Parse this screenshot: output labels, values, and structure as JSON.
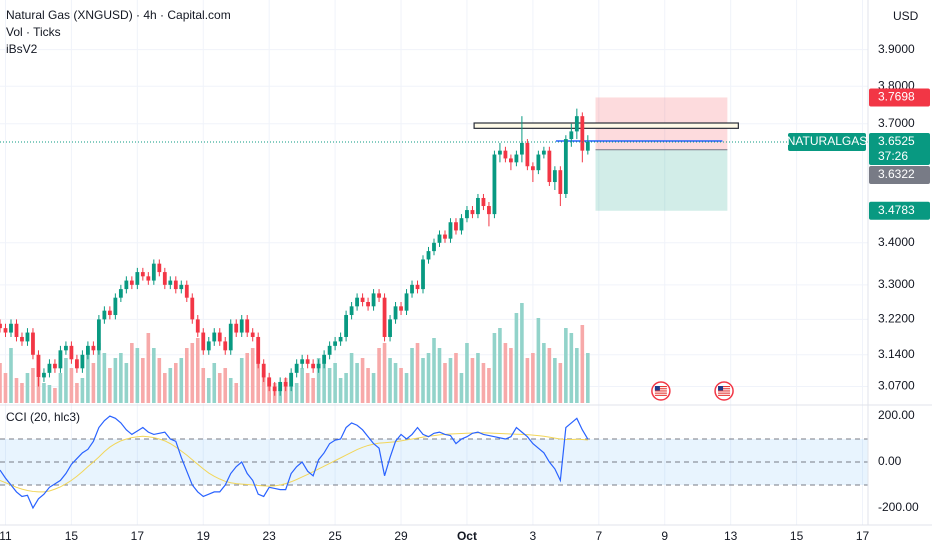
{
  "chart_data": [
    {
      "type": "candlestick",
      "title": "Natural Gas (XNGUSD) · 4h · Capital.com",
      "subtitles": [
        "Vol · Ticks",
        "iBsV2"
      ],
      "y_axis_label": "USD",
      "log_scale": true,
      "grid": true,
      "grid_color": "#f0f3fa",
      "ylim": [
        3.03,
        4.04
      ],
      "yticks": [
        {
          "value": 3.07,
          "label": "3.0700"
        },
        {
          "value": 3.14,
          "label": "3.1400"
        },
        {
          "value": 3.22,
          "label": "3.2200"
        },
        {
          "value": 3.3,
          "label": "3.3000"
        },
        {
          "value": 3.4,
          "label": "3.4000"
        },
        {
          "value": 3.7,
          "label": "3.7000"
        },
        {
          "value": 3.8,
          "label": "3.8000"
        },
        {
          "value": 3.9,
          "label": "3.9000"
        }
      ],
      "xlim": [
        0,
        158
      ],
      "xticks": [
        {
          "value": 1,
          "label": "11"
        },
        {
          "value": 13,
          "label": "15"
        },
        {
          "value": 25,
          "label": "17"
        },
        {
          "value": 37,
          "label": "19"
        },
        {
          "value": 49,
          "label": "23"
        },
        {
          "value": 61,
          "label": "25"
        },
        {
          "value": 73,
          "label": "29"
        },
        {
          "value": 85,
          "label": "Oct"
        },
        {
          "value": 97,
          "label": "3"
        },
        {
          "value": 109,
          "label": "7"
        },
        {
          "value": 121,
          "label": "9"
        },
        {
          "value": 133,
          "label": "13"
        },
        {
          "value": 145,
          "label": "15"
        },
        {
          "value": 157,
          "label": "17"
        }
      ],
      "up_color": "#089981",
      "down_color": "#f23645",
      "open": [
        3.21,
        3.2,
        3.19,
        3.21,
        3.18,
        3.17,
        3.19,
        3.14,
        3.09,
        3.1,
        3.12,
        3.11,
        3.15,
        3.16,
        3.13,
        3.11,
        3.14,
        3.16,
        3.15,
        3.22,
        3.24,
        3.23,
        3.27,
        3.29,
        3.31,
        3.3,
        3.33,
        3.32,
        3.31,
        3.35,
        3.33,
        3.3,
        3.31,
        3.29,
        3.3,
        3.27,
        3.22,
        3.19,
        3.15,
        3.17,
        3.19,
        3.17,
        3.15,
        3.21,
        3.19,
        3.22,
        3.19,
        3.18,
        3.12,
        3.09,
        3.07,
        3.06,
        3.08,
        3.07,
        3.1,
        3.12,
        3.13,
        3.12,
        3.11,
        3.12,
        3.14,
        3.16,
        3.17,
        3.18,
        3.23,
        3.25,
        3.27,
        3.26,
        3.25,
        3.28,
        3.27,
        3.18,
        3.22,
        3.25,
        3.24,
        3.28,
        3.3,
        3.29,
        3.36,
        3.38,
        3.4,
        3.42,
        3.41,
        3.45,
        3.43,
        3.46,
        3.48,
        3.47,
        3.51,
        3.49,
        3.47,
        3.62,
        3.63,
        3.61,
        3.6,
        3.62,
        3.65,
        3.59,
        3.58,
        3.62,
        3.63,
        3.55,
        3.58,
        3.52,
        3.66,
        3.68,
        3.72,
        3.63
      ],
      "high": [
        3.22,
        3.21,
        3.22,
        3.22,
        3.19,
        3.2,
        3.2,
        3.15,
        3.11,
        3.13,
        3.13,
        3.16,
        3.17,
        3.17,
        3.14,
        3.15,
        3.17,
        3.17,
        3.23,
        3.25,
        3.25,
        3.28,
        3.3,
        3.32,
        3.32,
        3.34,
        3.34,
        3.33,
        3.36,
        3.36,
        3.34,
        3.32,
        3.32,
        3.31,
        3.31,
        3.28,
        3.23,
        3.2,
        3.18,
        3.2,
        3.2,
        3.18,
        3.22,
        3.22,
        3.23,
        3.23,
        3.2,
        3.19,
        3.13,
        3.1,
        3.08,
        3.09,
        3.09,
        3.11,
        3.13,
        3.14,
        3.14,
        3.13,
        3.13,
        3.15,
        3.17,
        3.18,
        3.19,
        3.24,
        3.26,
        3.28,
        3.28,
        3.27,
        3.29,
        3.29,
        3.28,
        3.23,
        3.26,
        3.26,
        3.29,
        3.31,
        3.31,
        3.37,
        3.39,
        3.41,
        3.43,
        3.43,
        3.46,
        3.46,
        3.47,
        3.49,
        3.49,
        3.52,
        3.52,
        3.5,
        3.63,
        3.65,
        3.64,
        3.62,
        3.63,
        3.72,
        3.66,
        3.6,
        3.63,
        3.64,
        3.64,
        3.59,
        3.59,
        3.67,
        3.7,
        3.74,
        3.73,
        3.67
      ],
      "low": [
        3.19,
        3.18,
        3.18,
        3.17,
        3.16,
        3.16,
        3.13,
        3.07,
        3.08,
        3.09,
        3.1,
        3.1,
        3.14,
        3.12,
        3.1,
        3.1,
        3.13,
        3.14,
        3.14,
        3.21,
        3.22,
        3.22,
        3.26,
        3.28,
        3.29,
        3.29,
        3.31,
        3.3,
        3.3,
        3.32,
        3.29,
        3.29,
        3.28,
        3.28,
        3.26,
        3.21,
        3.18,
        3.14,
        3.14,
        3.16,
        3.16,
        3.14,
        3.14,
        3.18,
        3.18,
        3.18,
        3.17,
        3.11,
        3.08,
        3.06,
        3.05,
        3.05,
        3.06,
        3.06,
        3.09,
        3.11,
        3.11,
        3.1,
        3.1,
        3.11,
        3.13,
        3.15,
        3.16,
        3.17,
        3.22,
        3.24,
        3.25,
        3.24,
        3.24,
        3.26,
        3.17,
        3.17,
        3.21,
        3.23,
        3.23,
        3.27,
        3.28,
        3.28,
        3.35,
        3.37,
        3.39,
        3.4,
        3.4,
        3.42,
        3.42,
        3.45,
        3.46,
        3.46,
        3.48,
        3.44,
        3.46,
        3.6,
        3.6,
        3.58,
        3.59,
        3.6,
        3.58,
        3.55,
        3.57,
        3.61,
        3.54,
        3.53,
        3.49,
        3.51,
        3.64,
        3.66,
        3.6,
        3.62
      ],
      "close": [
        3.2,
        3.19,
        3.21,
        3.18,
        3.17,
        3.19,
        3.14,
        3.09,
        3.1,
        3.12,
        3.11,
        3.15,
        3.16,
        3.13,
        3.11,
        3.14,
        3.16,
        3.15,
        3.22,
        3.24,
        3.23,
        3.27,
        3.29,
        3.31,
        3.3,
        3.33,
        3.32,
        3.31,
        3.35,
        3.33,
        3.3,
        3.31,
        3.29,
        3.3,
        3.27,
        3.22,
        3.19,
        3.15,
        3.17,
        3.19,
        3.17,
        3.15,
        3.21,
        3.19,
        3.22,
        3.19,
        3.18,
        3.12,
        3.09,
        3.07,
        3.06,
        3.08,
        3.07,
        3.1,
        3.12,
        3.13,
        3.12,
        3.11,
        3.12,
        3.14,
        3.16,
        3.17,
        3.18,
        3.23,
        3.25,
        3.27,
        3.26,
        3.25,
        3.28,
        3.27,
        3.18,
        3.22,
        3.25,
        3.24,
        3.28,
        3.3,
        3.29,
        3.36,
        3.38,
        3.4,
        3.42,
        3.41,
        3.45,
        3.43,
        3.46,
        3.48,
        3.47,
        3.51,
        3.49,
        3.47,
        3.62,
        3.63,
        3.61,
        3.6,
        3.62,
        3.65,
        3.59,
        3.58,
        3.62,
        3.63,
        3.55,
        3.58,
        3.52,
        3.66,
        3.68,
        3.72,
        3.63,
        3.6525
      ],
      "volume": {
        "values": [
          40,
          30,
          55,
          25,
          20,
          30,
          35,
          25,
          20,
          18,
          15,
          30,
          45,
          35,
          20,
          25,
          55,
          40,
          60,
          50,
          35,
          45,
          50,
          40,
          60,
          55,
          45,
          70,
          55,
          45,
          30,
          35,
          40,
          45,
          55,
          60,
          65,
          35,
          25,
          40,
          30,
          35,
          25,
          20,
          45,
          50,
          55,
          40,
          30,
          25,
          20,
          15,
          25,
          30,
          20,
          35,
          30,
          25,
          45,
          40,
          35,
          40,
          25,
          30,
          50,
          40,
          45,
          35,
          30,
          55,
          60,
          45,
          40,
          35,
          30,
          55,
          60,
          45,
          50,
          65,
          55,
          40,
          45,
          50,
          30,
          60,
          45,
          50,
          40,
          35,
          70,
          75,
          60,
          55,
          90,
          100,
          45,
          50,
          85,
          60,
          55,
          45,
          40,
          75,
          70,
          55,
          78,
          50
        ],
        "vlim": [
          0,
          100
        ],
        "up_color": "#92d3ca",
        "down_color": "#f7a9a9"
      },
      "last_price": {
        "value": 3.6525,
        "label": "3.6525",
        "name": "NATURALGAS",
        "countdown": "37:26",
        "color": "#089981"
      },
      "position": {
        "x": [
          108.4,
          132.4
        ],
        "stop": {
          "value": 3.7698,
          "label": "3.7698"
        },
        "entry": {
          "value": 3.6322,
          "label": "3.6322"
        },
        "target": {
          "value": 3.4783,
          "label": "3.4783"
        },
        "stop_color": "#f23645",
        "entry_color": "#787b86",
        "target_color": "#089981"
      },
      "zone": {
        "top": 3.702,
        "bottom": 3.688,
        "x": [
          86.3,
          134.4
        ]
      },
      "level_line": {
        "value": 3.655,
        "x": [
          101.2,
          131.5
        ],
        "color": "#2962ff"
      },
      "events": [
        120.3,
        131.8
      ]
    },
    {
      "type": "line",
      "title": "CCI (20, hlc3)",
      "ylim": [
        -274,
        248
      ],
      "yticks": [
        {
          "value": 200,
          "label": "200.00"
        },
        {
          "value": 0,
          "label": "0.00"
        },
        {
          "value": -200,
          "label": "-200.00"
        }
      ],
      "band": [
        -100,
        100
      ],
      "band_color": "#2196f3",
      "levels": [
        100,
        0,
        -100
      ],
      "series": [
        {
          "color": "#2962ff",
          "values": [
            -35,
            -70,
            -100,
            -130,
            -150,
            -145,
            -200,
            -160,
            -140,
            -110,
            -95,
            -80,
            -50,
            -10,
            15,
            40,
            55,
            90,
            150,
            180,
            200,
            190,
            170,
            140,
            120,
            135,
            150,
            130,
            120,
            125,
            130,
            100,
            90,
            20,
            -40,
            -100,
            -130,
            -150,
            -140,
            -130,
            -130,
            -100,
            -50,
            -20,
            0,
            -50,
            -80,
            -140,
            -150,
            -110,
            -115,
            -120,
            -120,
            -50,
            -20,
            0,
            -40,
            -60,
            10,
            40,
            80,
            95,
            100,
            150,
            170,
            160,
            140,
            110,
            80,
            60,
            -60,
            20,
            90,
            120,
            100,
            120,
            150,
            120,
            110,
            125,
            130,
            120,
            115,
            80,
            100,
            110,
            125,
            130,
            120,
            115,
            110,
            105,
            100,
            110,
            150,
            130,
            110,
            80,
            60,
            40,
            0,
            -30,
            -80,
            150,
            170,
            190,
            140,
            100
          ]
        },
        {
          "color": "#f2d65a",
          "values": [
            -80,
            -90,
            -100,
            -110,
            -118,
            -124,
            -128,
            -130,
            -130,
            -126,
            -118,
            -108,
            -95,
            -80,
            -62,
            -42,
            -20,
            0,
            22,
            45,
            65,
            80,
            92,
            100,
            106,
            110,
            112,
            110,
            106,
            100,
            92,
            80,
            65,
            48,
            30,
            10,
            -10,
            -30,
            -48,
            -62,
            -74,
            -84,
            -90,
            -94,
            -96,
            -98,
            -100,
            -102,
            -104,
            -105,
            -104,
            -100,
            -94,
            -86,
            -76,
            -65,
            -54,
            -42,
            -30,
            -18,
            -6,
            6,
            18,
            30,
            42,
            54,
            64,
            72,
            78,
            82,
            84,
            86,
            88,
            92,
            96,
            100,
            104,
            108,
            112,
            115,
            118,
            120,
            122,
            123,
            124,
            125,
            126,
            127,
            127,
            126,
            125,
            124,
            123,
            122,
            121,
            120,
            119,
            117,
            115,
            112,
            108,
            104,
            100,
            98,
            98,
            99,
            98,
            96
          ]
        }
      ]
    }
  ]
}
